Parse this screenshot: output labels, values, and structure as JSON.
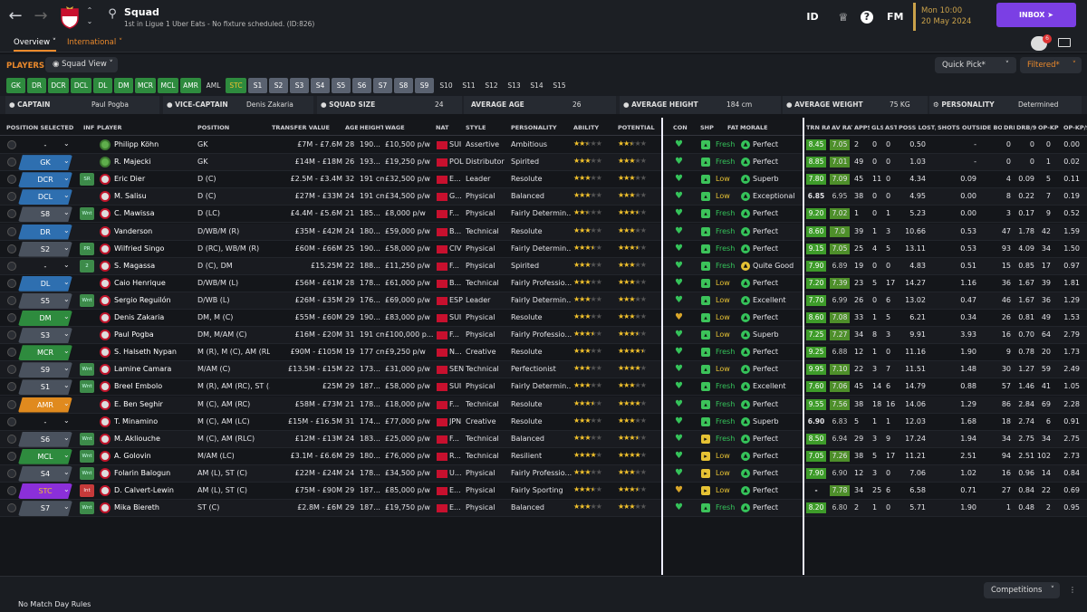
{
  "header": {
    "title": "Squad",
    "subtitle": "1st in Ligue 1 Uber Eats - No fixture scheduled. (ID:826)",
    "date_line1": "Mon 10:00",
    "date_line2": "20 May 2024",
    "inbox": "INBOX",
    "fm": "FM",
    "id": "ID",
    "help": "?"
  },
  "tabs": {
    "overview": "Overview",
    "international": "International"
  },
  "section": {
    "players": "PLAYERS",
    "squad_view": "Squad View",
    "quick_pick": "Quick Pick*",
    "filtered": "Filtered*",
    "notif_count": "6"
  },
  "positions": [
    "GK",
    "DR",
    "DCR",
    "DCL",
    "DL",
    "DM",
    "MCR",
    "MCL",
    "AMR",
    "AML",
    "STC",
    "S1",
    "S2",
    "S3",
    "S4",
    "S5",
    "S6",
    "S7",
    "S8",
    "S9",
    "S10",
    "S11",
    "S12",
    "S13",
    "S14",
    "S15"
  ],
  "info": {
    "captain_label": "CAPTAIN",
    "captain": "Paul Pogba",
    "vice_label": "VICE-CAPTAIN",
    "vice": "Denis Zakaria",
    "size_label": "SQUAD SIZE",
    "size": "24",
    "age_label": "AVERAGE AGE",
    "age": "26",
    "height_label": "AVERAGE HEIGHT",
    "height": "184 cm",
    "weight_label": "AVERAGE WEIGHT",
    "weight": "75 KG",
    "pers_label": "PERSONALITY",
    "pers": "Determined"
  },
  "columns": [
    "POSITION SELECTED",
    "INF",
    "PLAYER",
    "POSITION",
    "TRANSFER VALUE",
    "AGE",
    "HEIGHT",
    "WAGE",
    "NAT",
    "STYLE",
    "PERSONALITY",
    "ABILITY",
    "POTENTIAL",
    "CON",
    "SHP",
    "FATIG...",
    "MORALE",
    "TRN RAT",
    "AV RAT",
    "APPS",
    "GLS",
    "AST",
    "POSS LOST/...",
    "SHOTS OUTSIDE BOX...",
    "DRB",
    "DRB/90",
    "OP-KP",
    "OP-KP/90"
  ],
  "players": [
    {
      "sel": "-",
      "inf": "",
      "name": "Philipp Köhn",
      "pos": "GK",
      "tv": "£7M - £7.6M",
      "age": "28",
      "ht": "190...",
      "wage": "£10,500 p/w",
      "nat": "SUI",
      "style": "Assertive",
      "pers": "Ambitious",
      "ab": 2.5,
      "pot": 2.5,
      "shp": "up",
      "fat": "Fresh",
      "mor": "Perfect",
      "trn": "8.45",
      "av": "7.05",
      "apps": "2",
      "gls": "0",
      "ast": "0",
      "pl": "0.50",
      "sob": "-",
      "drb": "0",
      "drb90": "0",
      "kp": "0",
      "kp90": "0.00"
    },
    {
      "sel": "GK",
      "inf": "",
      "name": "R. Majecki",
      "pos": "GK",
      "tv": "£14M - £18M",
      "age": "26",
      "ht": "193...",
      "wage": "£19,250 p/w",
      "nat": "POL",
      "style": "Distributor",
      "pers": "Spirited",
      "ab": 3,
      "pot": 3,
      "shp": "up",
      "fat": "Fresh",
      "mor": "Perfect",
      "trn": "8.85",
      "av": "7.01",
      "apps": "49",
      "gls": "0",
      "ast": "0",
      "pl": "1.03",
      "sob": "-",
      "drb": "0",
      "drb90": "0",
      "kp": "1",
      "kp90": "0.02"
    },
    {
      "sel": "DCR",
      "inf": "SR",
      "name": "Eric Dier",
      "pos": "D (C)",
      "tv": "£2.5M - £3.4M",
      "age": "32",
      "ht": "191 cm",
      "wage": "£32,500 p/w",
      "nat": "E...",
      "style": "Leader",
      "pers": "Resolute",
      "ab": 3,
      "pot": 3,
      "shp": "up",
      "fat": "Low",
      "mor": "Superb",
      "trn": "7.80",
      "av": "7.09",
      "apps": "45",
      "gls": "11",
      "ast": "0",
      "pl": "4.34",
      "sob": "0.09",
      "drb": "4",
      "drb90": "0.09",
      "kp": "5",
      "kp90": "0.11"
    },
    {
      "sel": "DCL",
      "inf": "",
      "name": "M. Salisu",
      "pos": "D (C)",
      "tv": "£27M - £33M",
      "age": "24",
      "ht": "191 cm",
      "wage": "£34,500 p/w",
      "nat": "G...",
      "style": "Physical",
      "pers": "Balanced",
      "ab": 3,
      "pot": 3,
      "shp": "up",
      "fat": "Low",
      "mor": "Exceptional",
      "trn": "6.85",
      "av": "6.95",
      "apps": "38",
      "gls": "0",
      "ast": "0",
      "pl": "4.95",
      "sob": "0.00",
      "drb": "8",
      "drb90": "0.22",
      "kp": "7",
      "kp90": "0.19"
    },
    {
      "sel": "S8",
      "inf": "Wnt",
      "name": "C. Mawissa",
      "pos": "D (LC)",
      "tv": "£4.4M - £5.6M",
      "age": "21",
      "ht": "185...",
      "wage": "£8,000 p/w",
      "nat": "F...",
      "style": "Physical",
      "pers": "Fairly Determin...",
      "ab": 2.5,
      "pot": 3.5,
      "shp": "up",
      "fat": "Fresh",
      "mor": "Perfect",
      "trn": "9.20",
      "av": "7.02",
      "apps": "1",
      "gls": "0",
      "ast": "1",
      "pl": "5.23",
      "sob": "0.00",
      "drb": "3",
      "drb90": "0.17",
      "kp": "9",
      "kp90": "0.52"
    },
    {
      "sel": "DR",
      "inf": "",
      "name": "Vanderson",
      "pos": "D/WB/M (R)",
      "tv": "£35M - £42M",
      "age": "24",
      "ht": "180...",
      "wage": "£59,000 p/w",
      "nat": "B...",
      "style": "Technical",
      "pers": "Resolute",
      "ab": 3,
      "pot": 3,
      "shp": "up",
      "fat": "Fresh",
      "mor": "Perfect",
      "trn": "8.60",
      "av": "7.0",
      "apps": "39",
      "gls": "1",
      "ast": "3",
      "pl": "10.66",
      "sob": "0.53",
      "drb": "47",
      "drb90": "1.78",
      "kp": "42",
      "kp90": "1.59"
    },
    {
      "sel": "S2",
      "inf": "PR",
      "name": "Wilfried Singo",
      "pos": "D (RC), WB/M (R)",
      "tv": "£60M - £66M",
      "age": "25",
      "ht": "190...",
      "wage": "£58,000 p/w",
      "nat": "CIV",
      "style": "Physical",
      "pers": "Fairly Determin...",
      "ab": 3.5,
      "pot": 3.5,
      "shp": "up",
      "fat": "Fresh",
      "mor": "Perfect",
      "trn": "9.15",
      "av": "7.05",
      "apps": "25",
      "gls": "4",
      "ast": "5",
      "pl": "13.11",
      "sob": "0.53",
      "drb": "93",
      "drb90": "4.09",
      "kp": "34",
      "kp90": "1.50"
    },
    {
      "sel": "-",
      "inf": "2",
      "name": "S. Magassa",
      "pos": "D (C), DM",
      "tv": "£15.25M",
      "age": "22",
      "ht": "188...",
      "wage": "£11,250 p/w",
      "nat": "F...",
      "style": "Physical",
      "pers": "Spirited",
      "ab": 3,
      "pot": 3,
      "shp": "up",
      "fat": "Fresh",
      "mor": "Quite Good",
      "trn": "7.90",
      "av": "6.89",
      "apps": "19",
      "gls": "0",
      "ast": "0",
      "pl": "4.83",
      "sob": "0.51",
      "drb": "15",
      "drb90": "0.85",
      "kp": "17",
      "kp90": "0.97"
    },
    {
      "sel": "DL",
      "inf": "",
      "name": "Caio Henrique",
      "pos": "D/WB/M (L)",
      "tv": "£56M - £61M",
      "age": "28",
      "ht": "178...",
      "wage": "£61,000 p/w",
      "nat": "B...",
      "style": "Technical",
      "pers": "Fairly Professio...",
      "ab": 3,
      "pot": 3,
      "shp": "up",
      "fat": "Low",
      "mor": "Perfect",
      "trn": "7.20",
      "av": "7.39",
      "apps": "23",
      "gls": "5",
      "ast": "17",
      "pl": "14.27",
      "sob": "1.16",
      "drb": "36",
      "drb90": "1.67",
      "kp": "39",
      "kp90": "1.81"
    },
    {
      "sel": "S5",
      "inf": "Wnt",
      "name": "Sergio Reguilón",
      "pos": "D/WB (L)",
      "tv": "£26M - £35M",
      "age": "29",
      "ht": "176...",
      "wage": "£69,000 p/w",
      "nat": "ESP",
      "style": "Leader",
      "pers": "Fairly Determin...",
      "ab": 3,
      "pot": 3,
      "shp": "up",
      "fat": "Low",
      "mor": "Excellent",
      "trn": "7.70",
      "av": "6.99",
      "apps": "26",
      "gls": "0",
      "ast": "6",
      "pl": "13.02",
      "sob": "0.47",
      "drb": "46",
      "drb90": "1.67",
      "kp": "36",
      "kp90": "1.29"
    },
    {
      "sel": "DM",
      "inf": "",
      "name": "Denis Zakaria",
      "pos": "DM, M (C)",
      "tv": "£55M - £60M",
      "age": "29",
      "ht": "190...",
      "wage": "£83,000 p/w",
      "nat": "SUI",
      "style": "Physical",
      "pers": "Resolute",
      "ab": 3,
      "pot": 3,
      "shp": "down",
      "fat": "Low",
      "mor": "Perfect",
      "trn": "8.60",
      "av": "7.08",
      "apps": "33",
      "gls": "1",
      "ast": "5",
      "pl": "6.21",
      "sob": "0.34",
      "drb": "26",
      "drb90": "0.81",
      "kp": "49",
      "kp90": "1.53"
    },
    {
      "sel": "S3",
      "inf": "",
      "name": "Paul Pogba",
      "pos": "DM, M/AM (C)",
      "tv": "£16M - £20M",
      "age": "31",
      "ht": "191 cm",
      "wage": "£100,000 p...",
      "nat": "F...",
      "style": "Physical",
      "pers": "Fairly Professio...",
      "ab": 3.5,
      "pot": 3.5,
      "shp": "up",
      "fat": "Low",
      "mor": "Superb",
      "trn": "7.25",
      "av": "7.27",
      "apps": "34",
      "gls": "8",
      "ast": "3",
      "pl": "9.91",
      "sob": "3.93",
      "drb": "16",
      "drb90": "0.70",
      "kp": "64",
      "kp90": "2.79"
    },
    {
      "sel": "MCR",
      "inf": "",
      "name": "S. Halseth Nypan",
      "pos": "M (R), M (C), AM (RLC)",
      "tv": "£90M - £105M",
      "age": "19",
      "ht": "177 cm",
      "wage": "£9,250 p/w",
      "nat": "N...",
      "style": "Creative",
      "pers": "Resolute",
      "ab": 3,
      "pot": 4.5,
      "shp": "up",
      "fat": "Fresh",
      "mor": "Perfect",
      "trn": "9.25",
      "av": "6.88",
      "apps": "12",
      "gls": "1",
      "ast": "0",
      "pl": "11.16",
      "sob": "1.90",
      "drb": "9",
      "drb90": "0.78",
      "kp": "20",
      "kp90": "1.73"
    },
    {
      "sel": "S9",
      "inf": "Wnt",
      "name": "Lamine Camara",
      "pos": "M/AM (C)",
      "tv": "£13.5M - £15M",
      "age": "22",
      "ht": "173...",
      "wage": "£31,000 p/w",
      "nat": "SEN",
      "style": "Technical",
      "pers": "Perfectionist",
      "ab": 3,
      "pot": 4,
      "shp": "up",
      "fat": "Low",
      "mor": "Perfect",
      "trn": "9.95",
      "av": "7.10",
      "apps": "22",
      "gls": "3",
      "ast": "7",
      "pl": "11.51",
      "sob": "1.48",
      "drb": "30",
      "drb90": "1.27",
      "kp": "59",
      "kp90": "2.49"
    },
    {
      "sel": "S1",
      "inf": "Wnt",
      "name": "Breel Embolo",
      "pos": "M (R), AM (RC), ST (...",
      "tv": "£25M",
      "age": "29",
      "ht": "187...",
      "wage": "£58,000 p/w",
      "nat": "SUI",
      "style": "Physical",
      "pers": "Fairly Determin...",
      "ab": 3,
      "pot": 3,
      "shp": "up",
      "fat": "Fresh",
      "mor": "Excellent",
      "trn": "7.60",
      "av": "7.06",
      "apps": "45",
      "gls": "14",
      "ast": "6",
      "pl": "14.79",
      "sob": "0.88",
      "drb": "57",
      "drb90": "1.46",
      "kp": "41",
      "kp90": "1.05"
    },
    {
      "sel": "AMR",
      "inf": "",
      "name": "E. Ben Seghir",
      "pos": "M (C), AM (RC)",
      "tv": "£58M - £73M",
      "age": "21",
      "ht": "178...",
      "wage": "£18,000 p/w",
      "nat": "F...",
      "style": "Technical",
      "pers": "Resolute",
      "ab": 3.5,
      "pot": 4,
      "shp": "up",
      "fat": "Fresh",
      "mor": "Perfect",
      "trn": "9.55",
      "av": "7.56",
      "apps": "38",
      "gls": "18",
      "ast": "16",
      "pl": "14.06",
      "sob": "1.29",
      "drb": "86",
      "drb90": "2.84",
      "kp": "69",
      "kp90": "2.28"
    },
    {
      "sel": "-",
      "inf": "",
      "name": "T. Minamino",
      "pos": "M (C), AM (LC)",
      "tv": "£15M - £16.5M",
      "age": "31",
      "ht": "174...",
      "wage": "£77,000 p/w",
      "nat": "JPN",
      "style": "Creative",
      "pers": "Resolute",
      "ab": 3,
      "pot": 3,
      "shp": "up",
      "fat": "Fresh",
      "mor": "Superb",
      "trn": "6.90",
      "av": "6.83",
      "apps": "5",
      "gls": "1",
      "ast": "1",
      "pl": "12.03",
      "sob": "1.68",
      "drb": "18",
      "drb90": "2.74",
      "kp": "6",
      "kp90": "0.91"
    },
    {
      "sel": "S6",
      "inf": "Wnt",
      "name": "M. Akliouche",
      "pos": "M (C), AM (RLC)",
      "tv": "£12M - £13M",
      "age": "24",
      "ht": "183...",
      "wage": "£25,000 p/w",
      "nat": "F...",
      "style": "Technical",
      "pers": "Balanced",
      "ab": 3,
      "pot": 3.5,
      "shp": "mid",
      "fat": "Fresh",
      "mor": "Perfect",
      "trn": "8.50",
      "av": "6.94",
      "apps": "29",
      "gls": "3",
      "ast": "9",
      "pl": "17.24",
      "sob": "1.94",
      "drb": "34",
      "drb90": "2.75",
      "kp": "34",
      "kp90": "2.75"
    },
    {
      "sel": "MCL",
      "inf": "Wnt",
      "name": "A. Golovin",
      "pos": "M/AM (LC)",
      "tv": "£3.1M - £6.6M",
      "age": "29",
      "ht": "180...",
      "wage": "£76,000 p/w",
      "nat": "R...",
      "style": "Technical",
      "pers": "Resilient",
      "ab": 4,
      "pot": 4,
      "shp": "mid",
      "fat": "Low",
      "mor": "Perfect",
      "trn": "7.05",
      "av": "7.26",
      "apps": "38",
      "gls": "5",
      "ast": "17",
      "pl": "11.21",
      "sob": "2.51",
      "drb": "94",
      "drb90": "2.51",
      "kp": "102",
      "kp90": "2.73"
    },
    {
      "sel": "S4",
      "inf": "Wnt",
      "name": "Folarin Balogun",
      "pos": "AM (L), ST (C)",
      "tv": "£22M - £24M",
      "age": "24",
      "ht": "178...",
      "wage": "£34,500 p/w",
      "nat": "U...",
      "style": "Physical",
      "pers": "Fairly Professio...",
      "ab": 3,
      "pot": 3,
      "shp": "mid",
      "fat": "Low",
      "mor": "Perfect",
      "trn": "7.90",
      "av": "6.90",
      "apps": "12",
      "gls": "3",
      "ast": "0",
      "pl": "7.06",
      "sob": "1.02",
      "drb": "16",
      "drb90": "0.96",
      "kp": "14",
      "kp90": "0.84"
    },
    {
      "sel": "STC",
      "inf": "Int",
      "name": "D. Calvert-Lewin",
      "pos": "AM (L), ST (C)",
      "tv": "£75M - £90M",
      "age": "29",
      "ht": "187...",
      "wage": "£85,000 p/w",
      "nat": "E...",
      "style": "Physical",
      "pers": "Fairly Sporting",
      "ab": 3.5,
      "pot": 3.5,
      "shp": "mid",
      "fat": "Low",
      "mor": "Perfect",
      "trn": "-",
      "av": "7.78",
      "apps": "34",
      "gls": "25",
      "ast": "6",
      "pl": "6.58",
      "sob": "0.71",
      "drb": "27",
      "drb90": "0.84",
      "kp": "22",
      "kp90": "0.69"
    },
    {
      "sel": "S7",
      "inf": "Wnt",
      "name": "Mika Biereth",
      "pos": "ST (C)",
      "tv": "£2.8M - £6M",
      "age": "29",
      "ht": "187...",
      "wage": "£19,750 p/w",
      "nat": "E...",
      "style": "Physical",
      "pers": "Balanced",
      "ab": 3,
      "pot": 3,
      "shp": "up",
      "fat": "Fresh",
      "mor": "Perfect",
      "trn": "8.20",
      "av": "6.80",
      "apps": "2",
      "gls": "1",
      "ast": "0",
      "pl": "5.71",
      "sob": "1.90",
      "drb": "1",
      "drb90": "0.48",
      "kp": "2",
      "kp90": "0.95"
    }
  ],
  "footer": {
    "rules": "No Match Day Rules",
    "competitions": "Competitions"
  }
}
